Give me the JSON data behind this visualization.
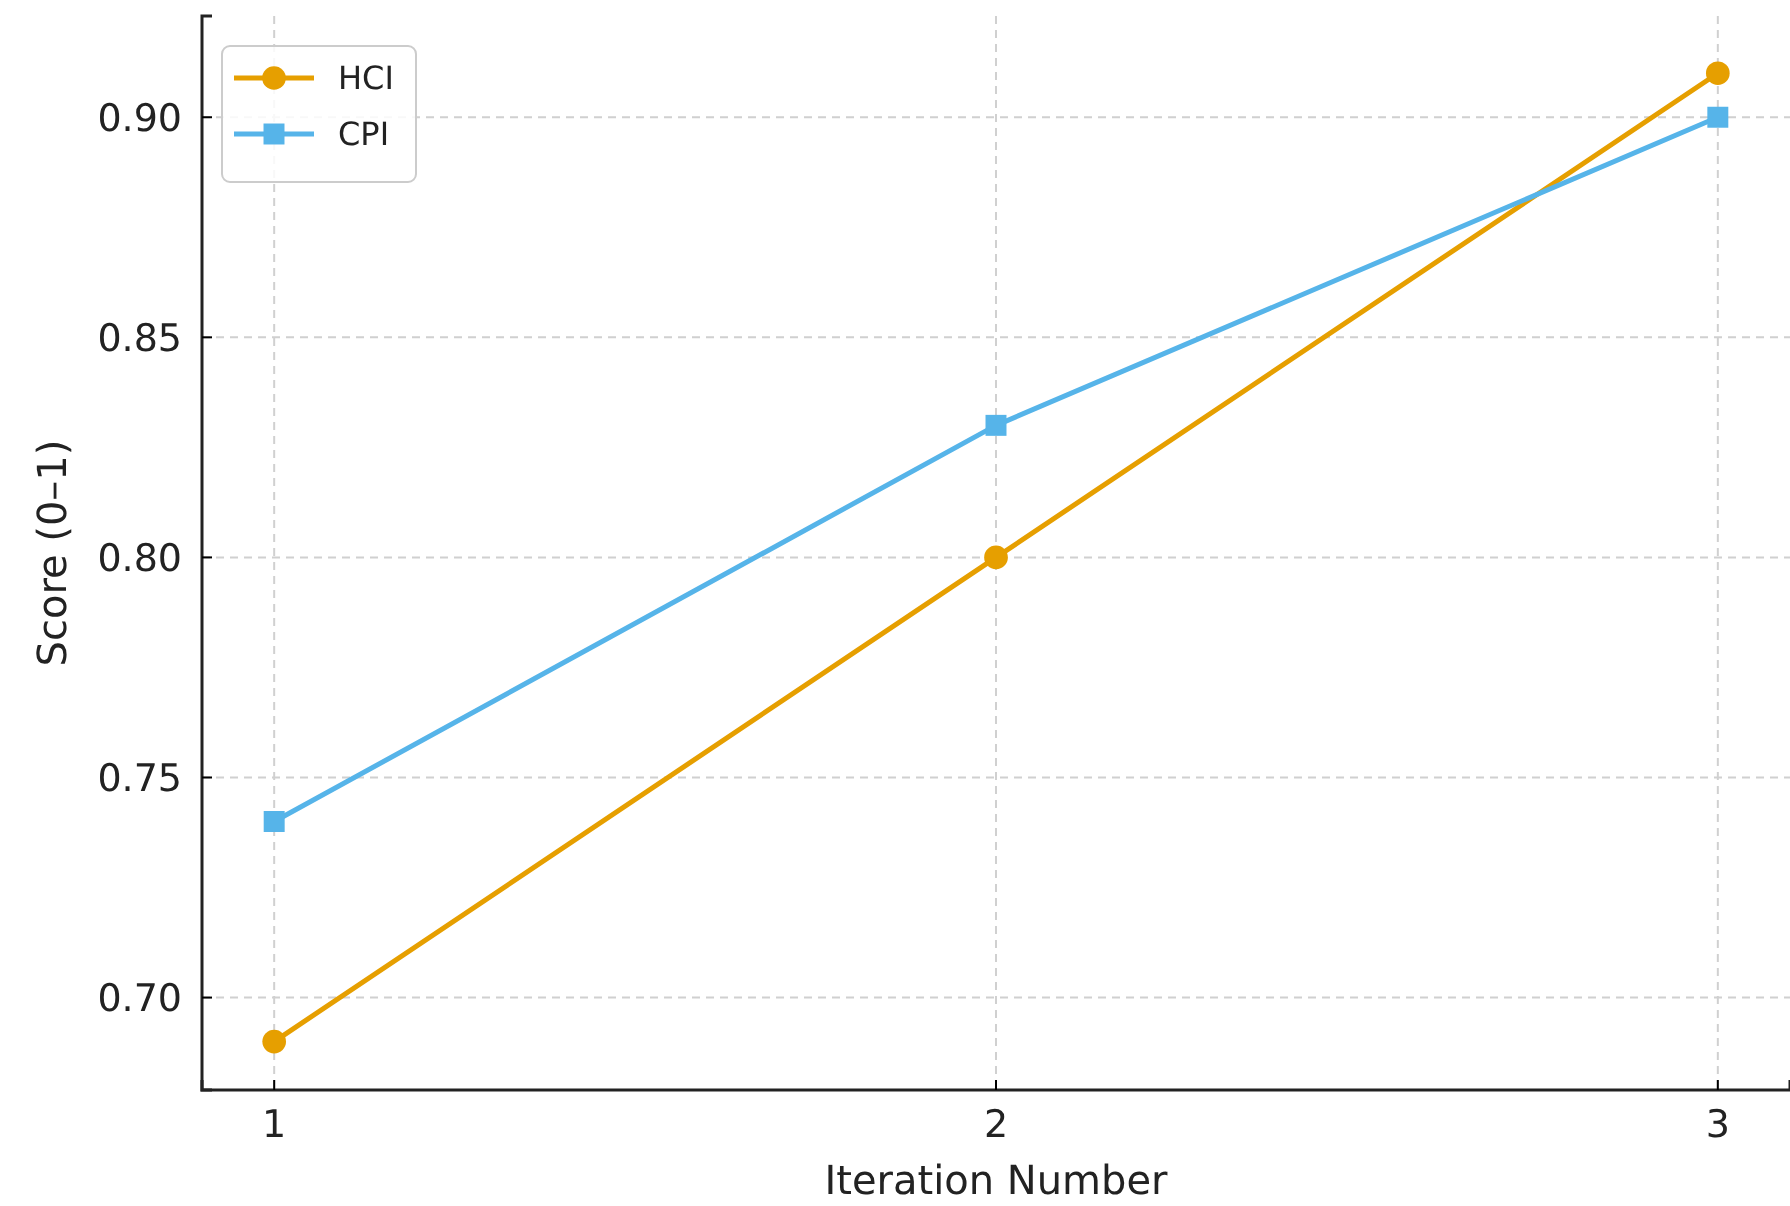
{
  "chart_data": {
    "type": "line",
    "xlabel": "Iteration Number",
    "ylabel": "Score (0–1)",
    "x": [
      1,
      2,
      3
    ],
    "xlim": [
      0.9,
      3.1
    ],
    "xticks": [
      1,
      2,
      3
    ],
    "ylim": [
      0.679,
      0.923
    ],
    "yticks": [
      {
        "value": 0.7,
        "label": "0.70"
      },
      {
        "value": 0.75,
        "label": "0.75"
      },
      {
        "value": 0.8,
        "label": "0.80"
      },
      {
        "value": 0.85,
        "label": "0.85"
      },
      {
        "value": 0.9,
        "label": "0.90"
      }
    ],
    "grid": true,
    "legend": "top left",
    "line_style": "solid",
    "series": [
      {
        "name": "HCI",
        "color": "#e69f00",
        "marker": "circle",
        "values": [
          0.69,
          0.8,
          0.91
        ]
      },
      {
        "name": "CPI",
        "color": "#56b4e9",
        "marker": "square",
        "values": [
          0.74,
          0.83,
          0.9
        ]
      }
    ]
  }
}
